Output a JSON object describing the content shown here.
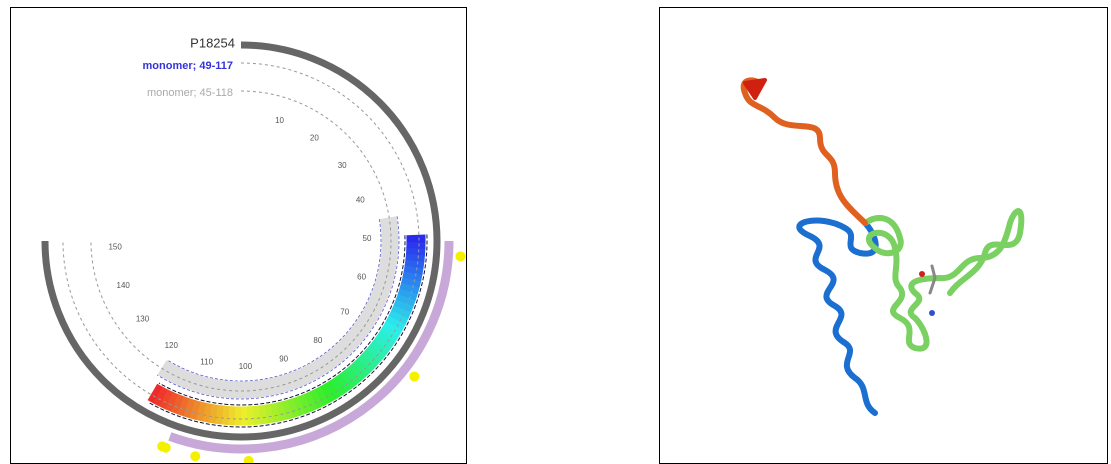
{
  "viewer": {
    "protein_id": "P18254",
    "tracks": [
      "monomer; 49-117",
      "monomer; 45-118"
    ],
    "position_labels": [
      10,
      20,
      30,
      40,
      50,
      60,
      70,
      80,
      90,
      100,
      110,
      120,
      130,
      140,
      150
    ]
  }
}
